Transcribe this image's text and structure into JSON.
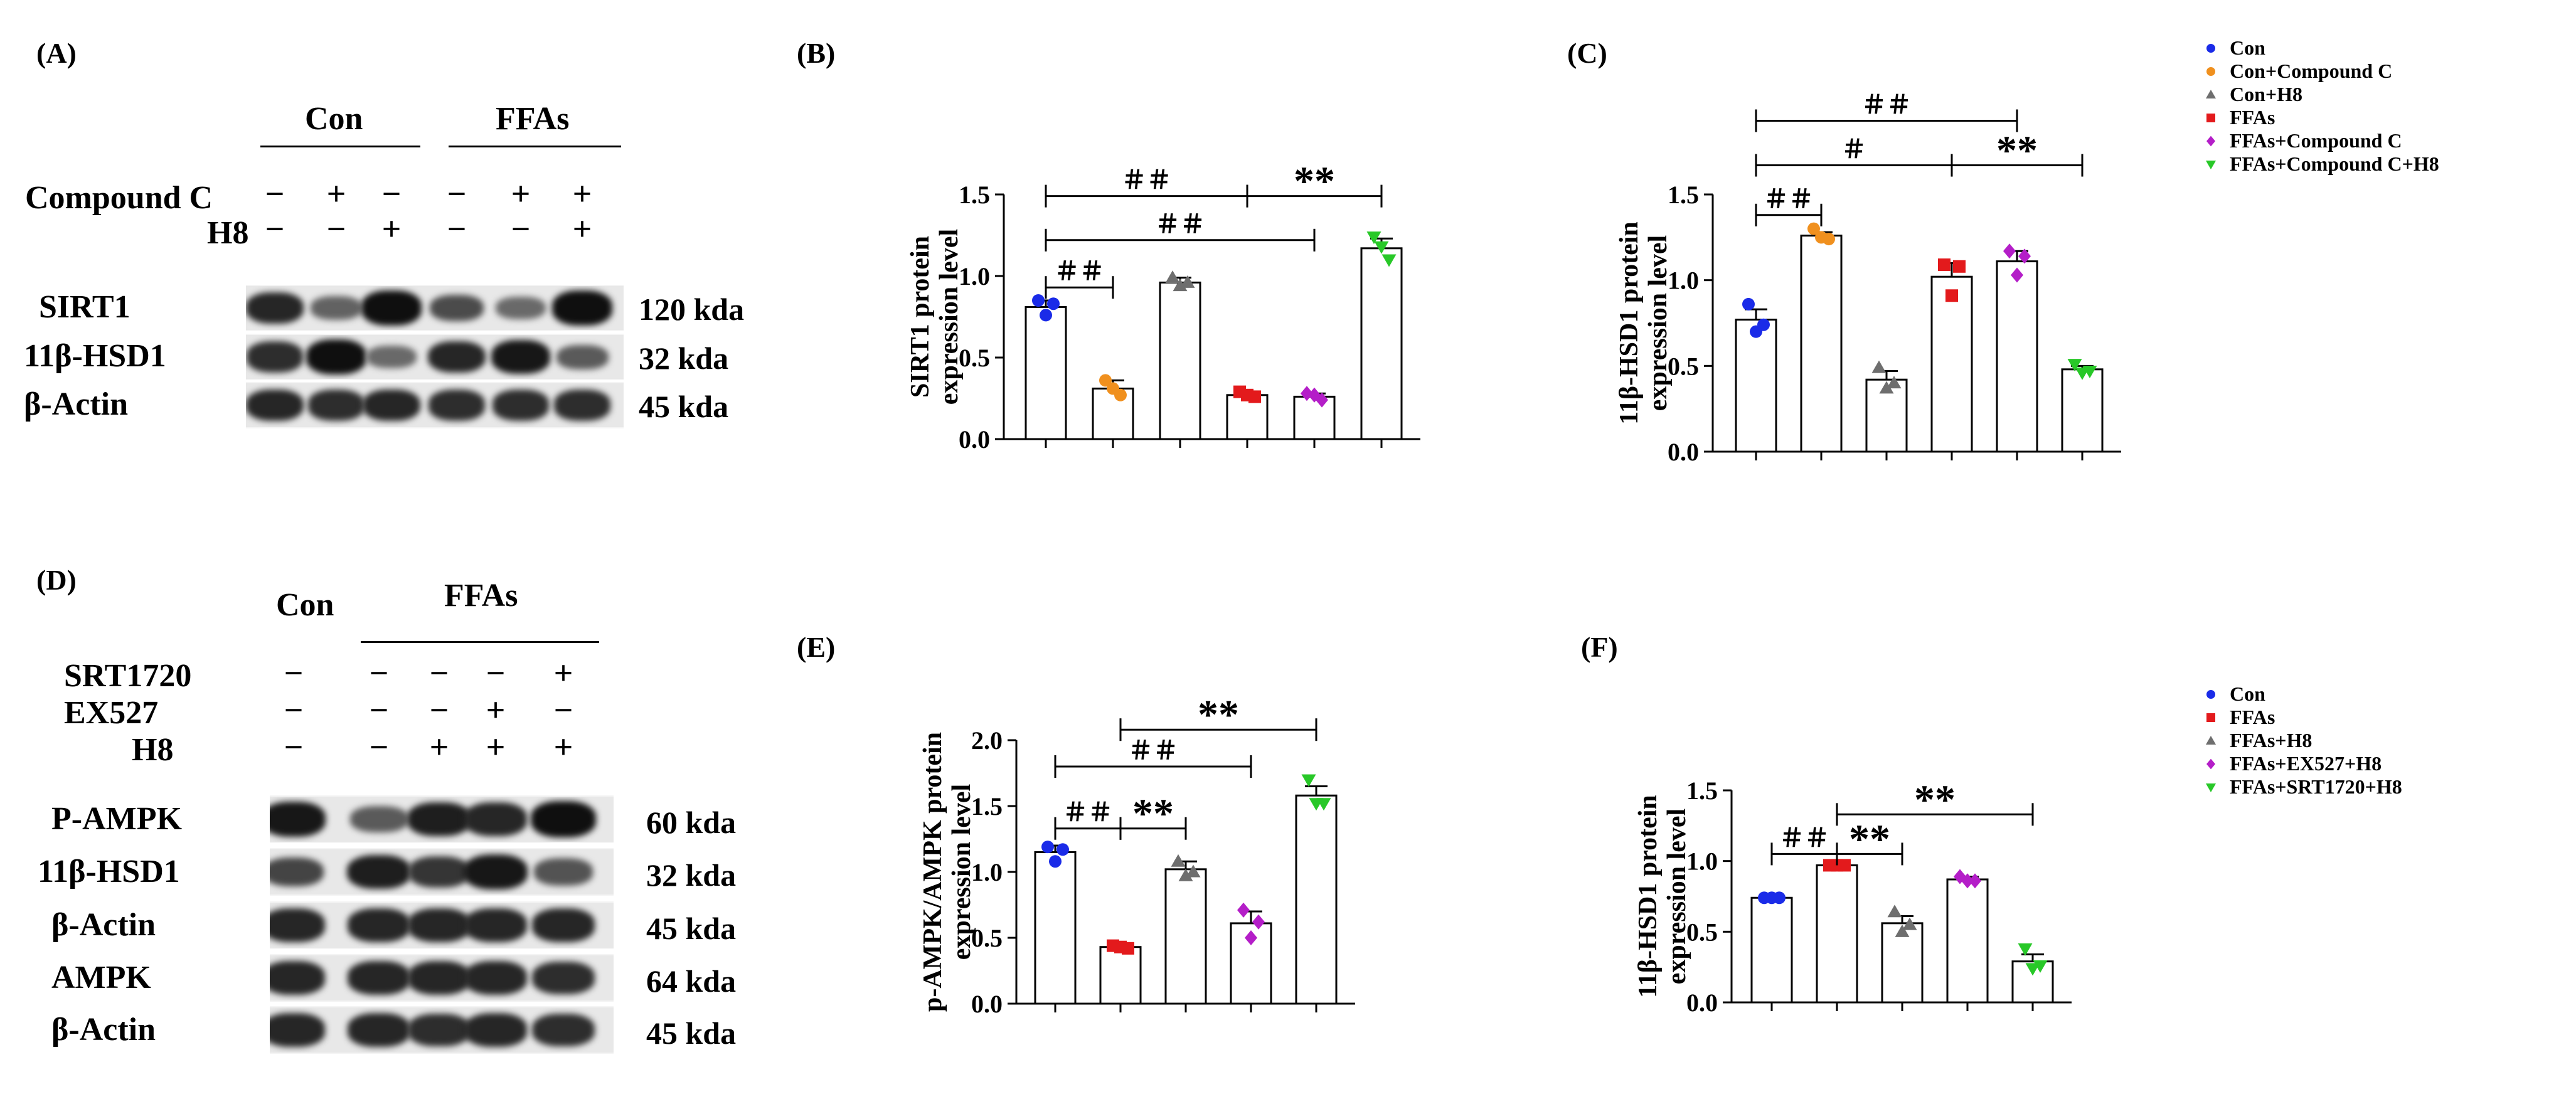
{
  "panels": {
    "A": "(A)",
    "B": "(B)",
    "C": "(C)",
    "D": "(D)",
    "E": "(E)",
    "F": "(F)"
  },
  "colors": {
    "Con": "#1a2be8",
    "Con+Compound C": "#f0901e",
    "Con+H8": "#6e6e6e",
    "FFAs": "#e31a1c",
    "FFAs+Compound C": "#b41ec8",
    "FFAs+Compound C+H8": "#28c828"
  },
  "blotA": {
    "group_con": "Con",
    "group_ffas": "FFAs",
    "row_compound": "Compound C",
    "row_h8": "H8",
    "compound_signs": [
      "−",
      "+",
      "−",
      "−",
      "+",
      "+"
    ],
    "h8_signs": [
      "−",
      "−",
      "+",
      "−",
      "−",
      "+"
    ],
    "proteins": [
      {
        "name": "SIRT1",
        "kda": "120 kda",
        "intensities": [
          0.85,
          0.45,
          1.0,
          0.6,
          0.4,
          1.0
        ]
      },
      {
        "name": "11β-HSD1",
        "kda": "32 kda",
        "intensities": [
          0.8,
          1.0,
          0.4,
          0.85,
          0.95,
          0.5
        ]
      },
      {
        "name": "β-Actin",
        "kda": "45 kda",
        "intensities": [
          0.85,
          0.8,
          0.85,
          0.8,
          0.8,
          0.8
        ]
      }
    ]
  },
  "blotD": {
    "group_con": "Con",
    "group_ffas": "FFAs",
    "rows": [
      {
        "label": "SRT1720",
        "signs": [
          "−",
          "−",
          "−",
          "−",
          "+"
        ]
      },
      {
        "label": "EX527",
        "signs": [
          "−",
          "−",
          "−",
          "+",
          "−"
        ]
      },
      {
        "label": "H8",
        "signs": [
          "−",
          "−",
          "+",
          "+",
          "+"
        ]
      }
    ],
    "proteins": [
      {
        "name": "P-AMPK",
        "kda": "60 kda",
        "intensities": [
          0.95,
          0.5,
          0.9,
          0.85,
          1.0
        ]
      },
      {
        "name": "11β-HSD1",
        "kda": "32 kda",
        "intensities": [
          0.65,
          0.9,
          0.75,
          0.95,
          0.55
        ]
      },
      {
        "name": "β-Actin",
        "kda": "45 kda",
        "intensities": [
          0.85,
          0.85,
          0.85,
          0.85,
          0.85
        ]
      },
      {
        "name": "AMPK",
        "kda": "64 kda",
        "intensities": [
          0.85,
          0.85,
          0.85,
          0.85,
          0.8
        ]
      },
      {
        "name": "β-Actin",
        "kda": "45 kda",
        "intensities": [
          0.85,
          0.85,
          0.8,
          0.85,
          0.8
        ]
      }
    ]
  },
  "legend1": [
    {
      "label": "Con",
      "marker": "circle",
      "color": "#1a2be8"
    },
    {
      "label": "Con+Compound C",
      "marker": "circle",
      "color": "#f0901e"
    },
    {
      "label": "Con+H8",
      "marker": "triangle",
      "color": "#6e6e6e"
    },
    {
      "label": "FFAs",
      "marker": "square",
      "color": "#e31a1c"
    },
    {
      "label": "FFAs+Compound C",
      "marker": "diamond",
      "color": "#b41ec8"
    },
    {
      "label": "FFAs+Compound C+H8",
      "marker": "triangle-down",
      "color": "#28c828"
    }
  ],
  "legend2": [
    {
      "label": "Con",
      "marker": "circle",
      "color": "#1a2be8"
    },
    {
      "label": "FFAs",
      "marker": "square",
      "color": "#e31a1c"
    },
    {
      "label": "FFAs+H8",
      "marker": "triangle",
      "color": "#6e6e6e"
    },
    {
      "label": "FFAs+EX527+H8",
      "marker": "diamond",
      "color": "#b41ec8"
    },
    {
      "label": "FFAs+SRT1720+H8",
      "marker": "triangle-down",
      "color": "#28c828"
    }
  ],
  "chart_data": [
    {
      "id": "B",
      "type": "bar",
      "ylabel": [
        "SIRT1 protein",
        "expression level"
      ],
      "ylim": [
        0,
        1.5
      ],
      "yticks": [
        "0.0",
        "0.5",
        "1.0",
        "1.5"
      ],
      "groups": [
        "Con",
        "Con+Compound C",
        "Con+H8",
        "FFAs",
        "FFAs+Compound C",
        "FFAs+Compound C+H8"
      ],
      "values": [
        0.81,
        0.31,
        0.96,
        0.27,
        0.26,
        1.17
      ],
      "errors": [
        0.04,
        0.05,
        0.03,
        0.02,
        0.02,
        0.06
      ],
      "points": [
        [
          0.85,
          0.83,
          0.76
        ],
        [
          0.36,
          0.27,
          0.31
        ],
        [
          0.99,
          0.96,
          0.94
        ],
        [
          0.29,
          0.26,
          0.27
        ],
        [
          0.28,
          0.24,
          0.27
        ],
        [
          1.24,
          1.1,
          1.18
        ]
      ],
      "markers": [
        "circle",
        "circle",
        "triangle",
        "square",
        "diamond",
        "triangle-down"
      ],
      "brackets": [
        {
          "from": 0,
          "to": 3,
          "y": 1.49,
          "text": "＃＃"
        },
        {
          "from": 3,
          "to": 5,
          "y": 1.49,
          "text": "**"
        },
        {
          "from": 0,
          "to": 4,
          "y": 1.22,
          "text": "＃＃"
        },
        {
          "from": 0,
          "to": 1,
          "y": 0.93,
          "text": "＃＃"
        }
      ]
    },
    {
      "id": "C",
      "type": "bar",
      "ylabel": [
        "11β-HSD1  protein",
        "expression level"
      ],
      "ylim": [
        0,
        1.5
      ],
      "yticks": [
        "0.0",
        "0.5",
        "1.0",
        "1.5"
      ],
      "groups": [
        "Con",
        "Con+Compound C",
        "Con+H8",
        "FFAs",
        "FFAs+Compound C",
        "FFAs+Compound C+H8"
      ],
      "values": [
        0.77,
        1.26,
        0.42,
        1.02,
        1.11,
        0.48
      ],
      "errors": [
        0.06,
        0.02,
        0.05,
        0.08,
        0.06,
        0.02
      ],
      "points": [
        [
          0.86,
          0.74,
          0.7
        ],
        [
          1.3,
          1.24,
          1.25
        ],
        [
          0.49,
          0.4,
          0.37
        ],
        [
          1.09,
          1.08,
          0.91
        ],
        [
          1.17,
          1.14,
          1.03
        ],
        [
          0.51,
          0.47,
          0.46
        ]
      ],
      "markers": [
        "circle",
        "circle",
        "triangle",
        "square",
        "diamond",
        "triangle-down"
      ],
      "brackets": [
        {
          "from": 0,
          "to": 4,
          "y": 1.93,
          "text": "＃＃"
        },
        {
          "from": 0,
          "to": 3,
          "y": 1.67,
          "text": "＃"
        },
        {
          "from": 3,
          "to": 5,
          "y": 1.67,
          "text": "**"
        },
        {
          "from": 0,
          "to": 1,
          "y": 1.38,
          "text": "＃＃"
        }
      ]
    },
    {
      "id": "E",
      "type": "bar",
      "ylabel": [
        "p-AMPK/AMPK protein",
        "expression level"
      ],
      "ylim": [
        0,
        2.0
      ],
      "yticks": [
        "0.0",
        "0.5",
        "1.0",
        "1.5",
        "2.0"
      ],
      "groups": [
        "Con",
        "FFAs",
        "FFAs+H8",
        "FFAs+EX527+H8",
        "FFAs+SRT1720+H8"
      ],
      "values": [
        1.15,
        0.43,
        1.02,
        0.61,
        1.58
      ],
      "errors": [
        0.05,
        0.02,
        0.06,
        0.09,
        0.07
      ],
      "points": [
        [
          1.19,
          1.17,
          1.08
        ],
        [
          0.44,
          0.42,
          0.43
        ],
        [
          1.08,
          1.0,
          0.97
        ],
        [
          0.71,
          0.62,
          0.5
        ],
        [
          1.7,
          1.52,
          1.52
        ]
      ],
      "markers": [
        "circle",
        "square",
        "triangle",
        "diamond",
        "triangle-down"
      ],
      "brackets": [
        {
          "from": 1,
          "to": 4,
          "y": 2.08,
          "text": "**"
        },
        {
          "from": 0,
          "to": 3,
          "y": 1.8,
          "text": "＃＃"
        },
        {
          "from": 0,
          "to": 1,
          "y": 1.33,
          "text": "＃＃"
        },
        {
          "from": 1,
          "to": 2,
          "y": 1.33,
          "text": "**"
        }
      ]
    },
    {
      "id": "F",
      "type": "bar",
      "ylabel": [
        "11β-HSD1  protein",
        "expression level"
      ],
      "ylim": [
        0,
        1.5
      ],
      "yticks": [
        "0.0",
        "0.5",
        "1.0",
        "1.5"
      ],
      "groups": [
        "Con",
        "FFAs",
        "FFAs+H8",
        "FFAs+EX527+H8",
        "FFAs+SRT1720+H8"
      ],
      "values": [
        0.74,
        0.97,
        0.56,
        0.87,
        0.29
      ],
      "errors": [
        0.01,
        0.01,
        0.05,
        0.02,
        0.05
      ],
      "points": [
        [
          0.74,
          0.74,
          0.74
        ],
        [
          0.97,
          0.97,
          0.97
        ],
        [
          0.64,
          0.55,
          0.5
        ],
        [
          0.89,
          0.86,
          0.86
        ],
        [
          0.38,
          0.26,
          0.24
        ]
      ],
      "markers": [
        "circle",
        "square",
        "triangle",
        "diamond",
        "triangle-down"
      ],
      "brackets": [
        {
          "from": 1,
          "to": 4,
          "y": 1.33,
          "text": "**"
        },
        {
          "from": 0,
          "to": 1,
          "y": 1.05,
          "text": "＃＃"
        },
        {
          "from": 1,
          "to": 2,
          "y": 1.05,
          "text": "**"
        }
      ]
    }
  ]
}
